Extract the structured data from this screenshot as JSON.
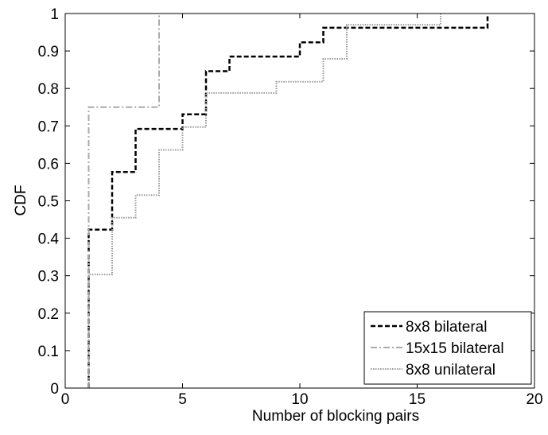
{
  "chart_data": {
    "type": "step",
    "xlabel": "Number of blocking pairs",
    "ylabel": "CDF",
    "xlim": [
      0,
      20
    ],
    "ylim": [
      0,
      1
    ],
    "xticks": [
      0,
      5,
      10,
      15,
      20
    ],
    "yticks": [
      0,
      0.1,
      0.2,
      0.3,
      0.4,
      0.5,
      0.6,
      0.7,
      0.8,
      0.9,
      1
    ],
    "legend": "lower right",
    "series": [
      {
        "name": "8x8 bilateral",
        "color": "#000000",
        "dash": "dashed",
        "x": [
          1,
          1,
          2,
          2,
          3,
          3,
          5,
          5,
          6,
          6,
          7,
          7,
          10,
          10,
          11,
          11,
          18,
          18
        ],
        "values": [
          0,
          0.423,
          0.423,
          0.577,
          0.577,
          0.692,
          0.692,
          0.731,
          0.731,
          0.846,
          0.846,
          0.885,
          0.885,
          0.923,
          0.923,
          0.962,
          0.962,
          1
        ]
      },
      {
        "name": "15x15 bilateral",
        "color": "#aaaaaa",
        "dash": "dashdot",
        "x": [
          1,
          1,
          4,
          4
        ],
        "values": [
          0,
          0.75,
          0.75,
          1
        ]
      },
      {
        "name": "8x8 unilateral",
        "color": "#999999",
        "dash": "dotted",
        "x": [
          1,
          1,
          2,
          2,
          3,
          3,
          4,
          4,
          5,
          5,
          6,
          6,
          9,
          9,
          11,
          11,
          12,
          12,
          16,
          16
        ],
        "values": [
          0,
          0.303,
          0.303,
          0.455,
          0.455,
          0.515,
          0.515,
          0.636,
          0.636,
          0.697,
          0.697,
          0.788,
          0.788,
          0.818,
          0.818,
          0.879,
          0.879,
          0.97,
          0.97,
          1
        ]
      }
    ]
  }
}
